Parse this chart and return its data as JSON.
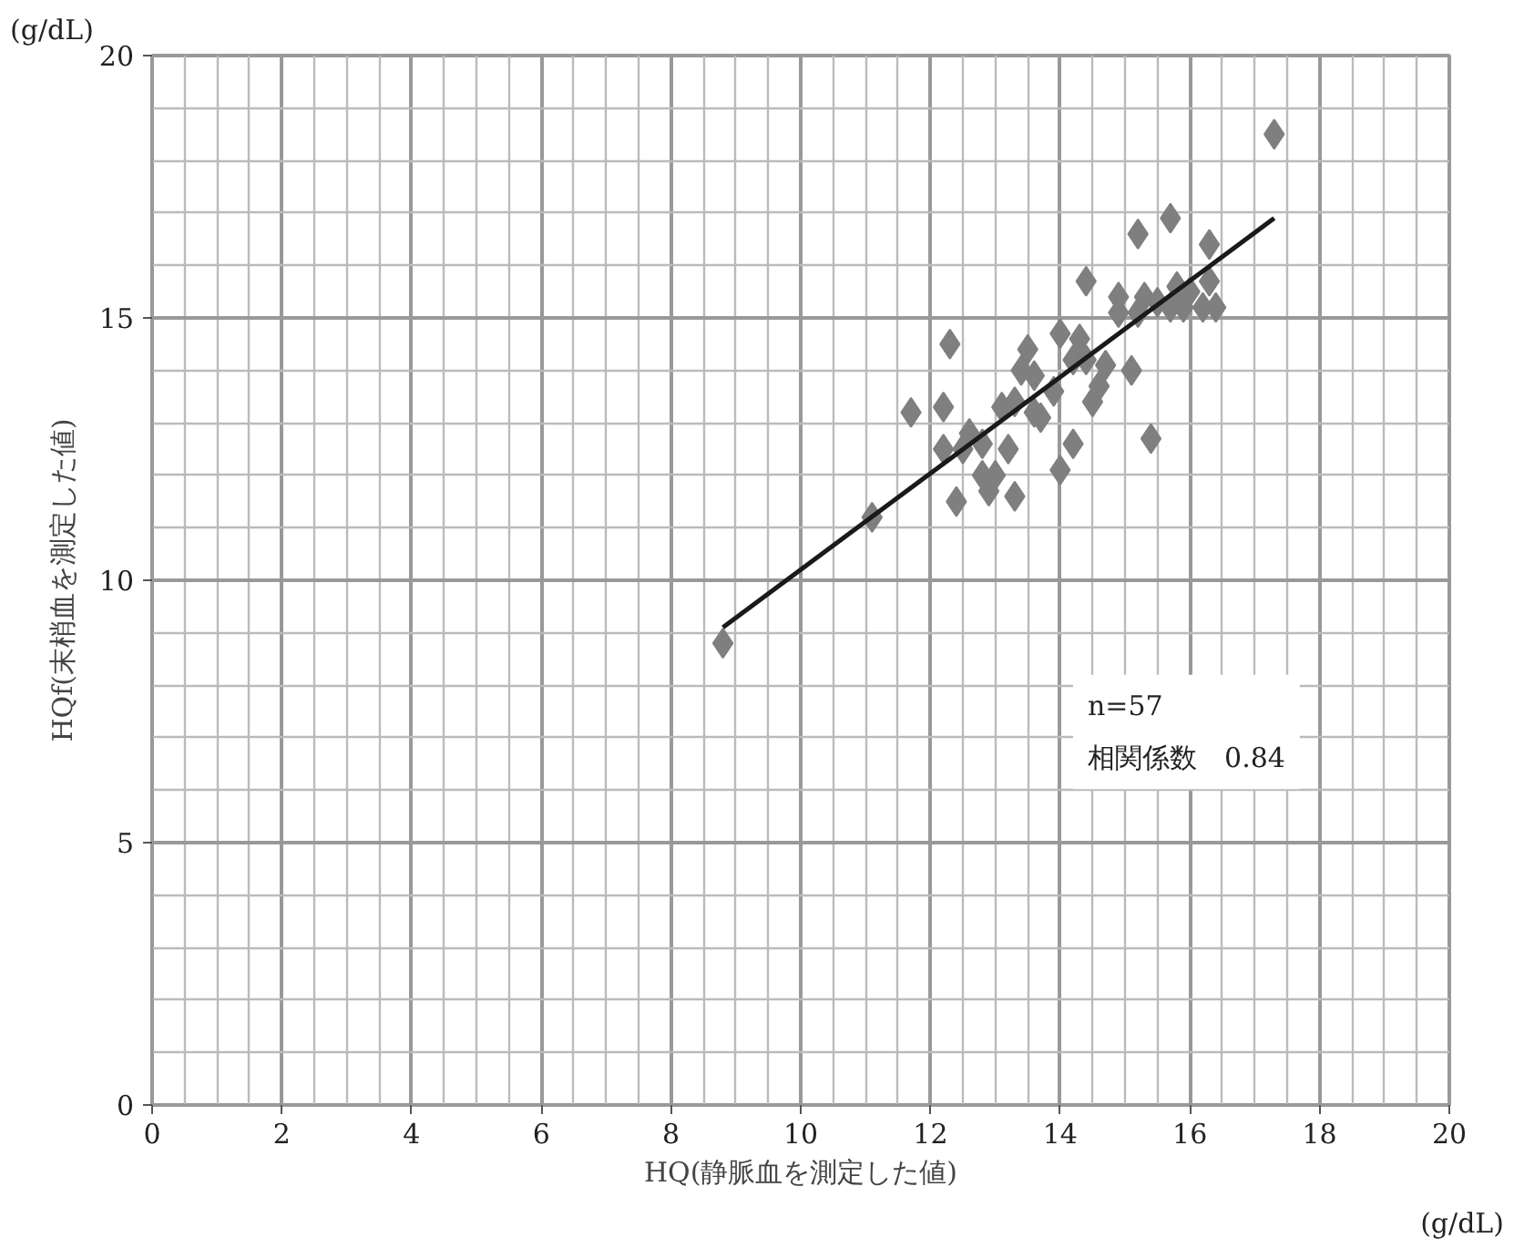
{
  "chart_data": {
    "type": "scatter",
    "xlabel": "HQ(静脈血を測定した値)",
    "ylabel": "HQf(末梢血を測定した値)",
    "xlim": [
      0,
      20
    ],
    "ylim": [
      0,
      20
    ],
    "xticks": [
      0,
      2,
      4,
      6,
      8,
      10,
      12,
      14,
      16,
      18,
      20
    ],
    "yticks": [
      0,
      5,
      10,
      15,
      20
    ],
    "grid": true,
    "annotations": [
      "(g/dL)",
      "(g/dL)",
      "n=57\n相関係数　0.84"
    ],
    "series": [
      {
        "marker": "diamond",
        "color": "#7f7f7f",
        "x": [
          8.8,
          11.1,
          11.7,
          12.3,
          12.2,
          12.4,
          12.2,
          12.6,
          12.8,
          12.8,
          13.0,
          12.9,
          13.3,
          13.2,
          13.3,
          13.5,
          13.4,
          13.7,
          13.6,
          13.9,
          14.0,
          14.2,
          14.0,
          14.3,
          14.2,
          14.6,
          14.5,
          14.7,
          15.1,
          14.4,
          14.9,
          15.3,
          15.2,
          15.4,
          15.2,
          15.7,
          16.3,
          15.8,
          16.0,
          16.3,
          15.9,
          16.2,
          16.4,
          15.7,
          17.3,
          13.1,
          15.5,
          13.6,
          12.5,
          14.4,
          14.9
        ],
        "values": [
          8.8,
          11.2,
          13.2,
          14.5,
          13.3,
          11.5,
          12.5,
          12.8,
          12.6,
          12.0,
          12.0,
          11.7,
          11.6,
          12.5,
          13.4,
          14.4,
          14.0,
          13.1,
          13.9,
          13.6,
          12.1,
          12.6,
          14.7,
          14.6,
          14.2,
          13.7,
          13.4,
          14.1,
          14.0,
          15.7,
          15.4,
          15.4,
          15.1,
          12.7,
          16.6,
          16.9,
          16.4,
          15.6,
          15.5,
          15.7,
          15.2,
          15.2,
          15.2,
          15.2,
          18.5,
          13.3,
          15.3,
          13.2,
          12.5,
          14.2,
          15.1
        ]
      },
      {
        "type": "line",
        "color": "#1a1a1a",
        "x": [
          8.8,
          17.3
        ],
        "values": [
          9.1,
          16.9
        ]
      }
    ]
  }
}
